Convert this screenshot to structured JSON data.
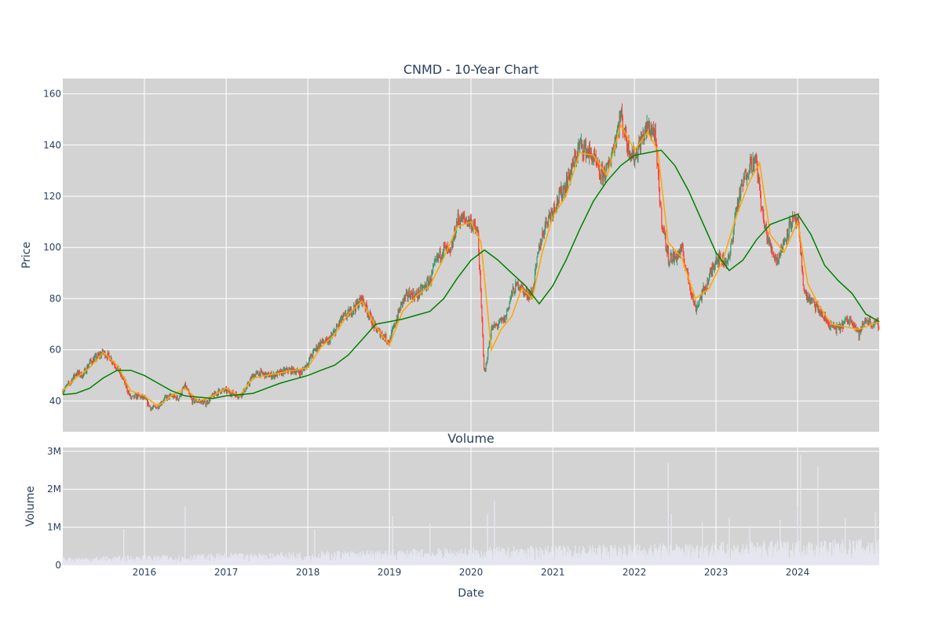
{
  "chart_data": {
    "type": "candlestick",
    "title": "CNMD - 10-Year Chart",
    "price_panel": {
      "ylabel": "Price",
      "ylim": [
        28,
        166
      ],
      "yticks": [
        40,
        60,
        80,
        100,
        120,
        140,
        160
      ],
      "candles": [
        [
          "2015-01-01",
          44
        ],
        [
          "2015-02-01",
          47
        ],
        [
          "2015-03-01",
          51
        ],
        [
          "2015-04-01",
          50
        ],
        [
          "2015-05-01",
          55
        ],
        [
          "2015-06-01",
          57
        ],
        [
          "2015-07-01",
          59
        ],
        [
          "2015-08-01",
          57
        ],
        [
          "2015-09-01",
          53
        ],
        [
          "2015-10-01",
          48
        ],
        [
          "2015-11-01",
          41
        ],
        [
          "2015-12-01",
          42
        ],
        [
          "2016-01-01",
          41
        ],
        [
          "2016-02-01",
          37
        ],
        [
          "2016-03-01",
          38
        ],
        [
          "2016-04-01",
          41
        ],
        [
          "2016-05-01",
          42
        ],
        [
          "2016-06-01",
          41
        ],
        [
          "2016-07-01",
          46
        ],
        [
          "2016-08-01",
          40
        ],
        [
          "2016-09-01",
          40
        ],
        [
          "2016-10-01",
          39
        ],
        [
          "2016-11-01",
          42
        ],
        [
          "2016-12-01",
          44
        ],
        [
          "2017-01-01",
          44
        ],
        [
          "2017-02-01",
          43
        ],
        [
          "2017-03-01",
          42
        ],
        [
          "2017-04-01",
          45
        ],
        [
          "2017-05-01",
          50
        ],
        [
          "2017-06-01",
          51
        ],
        [
          "2017-07-01",
          50
        ],
        [
          "2017-08-01",
          50
        ],
        [
          "2017-09-01",
          51
        ],
        [
          "2017-10-01",
          52
        ],
        [
          "2017-11-01",
          52
        ],
        [
          "2017-12-01",
          51
        ],
        [
          "2018-01-01",
          55
        ],
        [
          "2018-02-01",
          60
        ],
        [
          "2018-03-01",
          63
        ],
        [
          "2018-04-01",
          63
        ],
        [
          "2018-05-01",
          67
        ],
        [
          "2018-06-01",
          72
        ],
        [
          "2018-07-01",
          74
        ],
        [
          "2018-08-01",
          77
        ],
        [
          "2018-09-01",
          80
        ],
        [
          "2018-10-01",
          74
        ],
        [
          "2018-11-01",
          68
        ],
        [
          "2018-12-01",
          66
        ],
        [
          "2019-01-01",
          63
        ],
        [
          "2019-02-01",
          72
        ],
        [
          "2019-03-01",
          79
        ],
        [
          "2019-04-01",
          82
        ],
        [
          "2019-05-01",
          81
        ],
        [
          "2019-06-01",
          84
        ],
        [
          "2019-07-01",
          87
        ],
        [
          "2019-08-01",
          95
        ],
        [
          "2019-09-01",
          100
        ],
        [
          "2019-10-01",
          97
        ],
        [
          "2019-11-01",
          111
        ],
        [
          "2019-12-01",
          111
        ],
        [
          "2020-01-01",
          110
        ],
        [
          "2020-02-01",
          105
        ],
        [
          "2020-03-01",
          50
        ],
        [
          "2020-04-01",
          68
        ],
        [
          "2020-05-01",
          70
        ],
        [
          "2020-06-01",
          72
        ],
        [
          "2020-07-01",
          82
        ],
        [
          "2020-08-01",
          86
        ],
        [
          "2020-09-01",
          82
        ],
        [
          "2020-10-01",
          82
        ],
        [
          "2020-11-01",
          100
        ],
        [
          "2020-12-01",
          110
        ],
        [
          "2021-01-01",
          115
        ],
        [
          "2021-02-01",
          120
        ],
        [
          "2021-03-01",
          125
        ],
        [
          "2021-04-01",
          132
        ],
        [
          "2021-05-01",
          140
        ],
        [
          "2021-06-01",
          138
        ],
        [
          "2021-07-01",
          135
        ],
        [
          "2021-08-01",
          128
        ],
        [
          "2021-09-01",
          130
        ],
        [
          "2021-10-01",
          140
        ],
        [
          "2021-11-01",
          152
        ],
        [
          "2021-12-01",
          140
        ],
        [
          "2022-01-01",
          135
        ],
        [
          "2022-02-01",
          142
        ],
        [
          "2022-03-01",
          147
        ],
        [
          "2022-04-01",
          145
        ],
        [
          "2022-05-01",
          112
        ],
        [
          "2022-06-01",
          96
        ],
        [
          "2022-07-01",
          96
        ],
        [
          "2022-08-01",
          99
        ],
        [
          "2022-09-01",
          87
        ],
        [
          "2022-10-01",
          76
        ],
        [
          "2022-11-01",
          82
        ],
        [
          "2022-12-01",
          88
        ],
        [
          "2023-01-01",
          96
        ],
        [
          "2023-02-01",
          95
        ],
        [
          "2023-03-01",
          95
        ],
        [
          "2023-04-01",
          115
        ],
        [
          "2023-05-01",
          125
        ],
        [
          "2023-06-01",
          133
        ],
        [
          "2023-07-01",
          133
        ],
        [
          "2023-08-01",
          110
        ],
        [
          "2023-09-01",
          100
        ],
        [
          "2023-10-01",
          95
        ],
        [
          "2023-11-01",
          102
        ],
        [
          "2023-12-01",
          110
        ],
        [
          "2024-01-01",
          110
        ],
        [
          "2024-02-01",
          82
        ],
        [
          "2024-03-01",
          79
        ],
        [
          "2024-04-01",
          76
        ],
        [
          "2024-05-01",
          72
        ],
        [
          "2024-06-01",
          69
        ],
        [
          "2024-07-01",
          68
        ],
        [
          "2024-08-01",
          71
        ],
        [
          "2024-09-01",
          72
        ],
        [
          "2024-10-01",
          66
        ],
        [
          "2024-11-01",
          72
        ],
        [
          "2024-12-01",
          70
        ]
      ],
      "series": [
        {
          "color": "#ffa500",
          "points": [
            [
              "2015-01-01",
              44
            ],
            [
              "2015-03-01",
              49
            ],
            [
              "2015-05-01",
              53
            ],
            [
              "2015-07-01",
              59
            ],
            [
              "2015-09-01",
              54
            ],
            [
              "2015-11-01",
              44
            ],
            [
              "2016-01-01",
              42
            ],
            [
              "2016-03-01",
              38
            ],
            [
              "2016-05-01",
              42
            ],
            [
              "2016-07-01",
              45
            ],
            [
              "2016-09-01",
              40
            ],
            [
              "2016-11-01",
              42
            ],
            [
              "2017-01-01",
              45
            ],
            [
              "2017-03-01",
              42
            ],
            [
              "2017-05-01",
              49
            ],
            [
              "2017-07-01",
              50
            ],
            [
              "2017-09-01",
              51
            ],
            [
              "2017-11-01",
              52
            ],
            [
              "2018-01-01",
              53
            ],
            [
              "2018-03-01",
              61
            ],
            [
              "2018-05-01",
              66
            ],
            [
              "2018-07-01",
              74
            ],
            [
              "2018-09-01",
              79
            ],
            [
              "2018-11-01",
              69
            ],
            [
              "2019-01-01",
              62
            ],
            [
              "2019-03-01",
              75
            ],
            [
              "2019-05-01",
              81
            ],
            [
              "2019-07-01",
              85
            ],
            [
              "2019-09-01",
              96
            ],
            [
              "2019-11-01",
              108
            ],
            [
              "2020-01-01",
              110
            ],
            [
              "2020-02-15",
              102
            ],
            [
              "2020-04-01",
              60
            ],
            [
              "2020-05-15",
              68
            ],
            [
              "2020-07-01",
              73
            ],
            [
              "2020-08-15",
              84
            ],
            [
              "2020-10-01",
              80
            ],
            [
              "2020-11-15",
              98
            ],
            [
              "2021-01-01",
              112
            ],
            [
              "2021-03-01",
              120
            ],
            [
              "2021-05-01",
              137
            ],
            [
              "2021-07-01",
              136
            ],
            [
              "2021-09-01",
              128
            ],
            [
              "2021-11-01",
              148
            ],
            [
              "2022-01-01",
              138
            ],
            [
              "2022-03-01",
              145
            ],
            [
              "2022-04-15",
              138
            ],
            [
              "2022-06-01",
              102
            ],
            [
              "2022-08-01",
              96
            ],
            [
              "2022-10-01",
              80
            ],
            [
              "2022-12-01",
              84
            ],
            [
              "2023-02-01",
              95
            ],
            [
              "2023-04-01",
              112
            ],
            [
              "2023-06-01",
              126
            ],
            [
              "2023-07-15",
              133
            ],
            [
              "2023-09-01",
              105
            ],
            [
              "2023-11-01",
              98
            ],
            [
              "2024-01-01",
              110
            ],
            [
              "2024-02-15",
              86
            ],
            [
              "2024-04-01",
              78
            ],
            [
              "2024-06-01",
              70
            ],
            [
              "2024-08-01",
              69
            ],
            [
              "2024-10-01",
              68
            ],
            [
              "2024-12-31",
              71
            ]
          ]
        },
        {
          "color": "#008000",
          "points": [
            [
              "2015-01-01",
              42.5
            ],
            [
              "2015-03-01",
              43
            ],
            [
              "2015-05-01",
              45
            ],
            [
              "2015-07-01",
              49
            ],
            [
              "2015-09-01",
              52
            ],
            [
              "2015-11-01",
              52
            ],
            [
              "2016-01-01",
              50
            ],
            [
              "2016-03-01",
              47
            ],
            [
              "2016-05-01",
              44
            ],
            [
              "2016-07-01",
              42
            ],
            [
              "2016-09-01",
              41.5
            ],
            [
              "2016-11-01",
              41
            ],
            [
              "2017-01-01",
              42
            ],
            [
              "2017-03-01",
              42.5
            ],
            [
              "2017-05-01",
              43
            ],
            [
              "2017-07-01",
              45
            ],
            [
              "2017-09-01",
              47
            ],
            [
              "2017-11-01",
              48.5
            ],
            [
              "2018-01-01",
              50
            ],
            [
              "2018-03-01",
              52
            ],
            [
              "2018-05-01",
              54
            ],
            [
              "2018-07-01",
              58
            ],
            [
              "2018-09-01",
              64
            ],
            [
              "2018-11-01",
              70
            ],
            [
              "2019-01-01",
              71
            ],
            [
              "2019-03-01",
              72
            ],
            [
              "2019-05-01",
              73.5
            ],
            [
              "2019-07-01",
              75
            ],
            [
              "2019-09-01",
              80
            ],
            [
              "2019-11-01",
              88
            ],
            [
              "2020-01-01",
              95
            ],
            [
              "2020-03-01",
              99
            ],
            [
              "2020-05-01",
              95
            ],
            [
              "2020-07-01",
              90
            ],
            [
              "2020-09-01",
              85
            ],
            [
              "2020-11-01",
              78
            ],
            [
              "2021-01-01",
              85
            ],
            [
              "2021-03-01",
              95
            ],
            [
              "2021-05-01",
              107
            ],
            [
              "2021-07-01",
              118
            ],
            [
              "2021-09-01",
              126
            ],
            [
              "2021-11-01",
              132
            ],
            [
              "2022-01-01",
              136
            ],
            [
              "2022-03-01",
              137
            ],
            [
              "2022-05-01",
              138
            ],
            [
              "2022-07-01",
              132
            ],
            [
              "2022-09-01",
              122
            ],
            [
              "2022-11-01",
              110
            ],
            [
              "2023-01-01",
              98
            ],
            [
              "2023-03-01",
              91
            ],
            [
              "2023-05-01",
              95
            ],
            [
              "2023-07-01",
              103
            ],
            [
              "2023-09-01",
              109
            ],
            [
              "2023-11-01",
              111
            ],
            [
              "2024-01-01",
              113
            ],
            [
              "2024-03-01",
              105
            ],
            [
              "2024-05-01",
              93
            ],
            [
              "2024-07-01",
              87
            ],
            [
              "2024-09-01",
              82
            ],
            [
              "2024-11-01",
              74
            ],
            [
              "2024-12-31",
              71
            ]
          ]
        }
      ]
    },
    "volume_panel": {
      "subtitle": "Volume",
      "ylabel": "Volume",
      "ylim": [
        0,
        3100000
      ],
      "ytick_labels": [
        "0",
        "1M",
        "2M",
        "3M"
      ],
      "yticks": [
        0,
        1000000,
        2000000,
        3000000
      ],
      "bar_color": "#e6e6f0",
      "spikes": [
        [
          "2015-10-01",
          950000
        ],
        [
          "2016-07-01",
          1550000
        ],
        [
          "2018-02-01",
          950000
        ],
        [
          "2019-01-15",
          1300000
        ],
        [
          "2019-07-01",
          1100000
        ],
        [
          "2020-03-15",
          1350000
        ],
        [
          "2020-04-15",
          1700000
        ],
        [
          "2022-06-01",
          2700000
        ],
        [
          "2022-06-15",
          1350000
        ],
        [
          "2022-11-01",
          1150000
        ],
        [
          "2023-03-01",
          1250000
        ],
        [
          "2023-06-01",
          1050000
        ],
        [
          "2023-10-15",
          1200000
        ],
        [
          "2024-01-01",
          1550000
        ],
        [
          "2024-01-15",
          2900000
        ],
        [
          "2024-04-01",
          2600000
        ],
        [
          "2024-08-01",
          1250000
        ],
        [
          "2024-12-15",
          1400000
        ]
      ]
    },
    "xaxis": {
      "xlabel": "Date",
      "range": [
        "2015-01-01",
        "2024-12-31"
      ],
      "ticks": [
        [
          "2016-01-01",
          "2016"
        ],
        [
          "2017-01-01",
          "2017"
        ],
        [
          "2018-01-01",
          "2018"
        ],
        [
          "2019-01-01",
          "2019"
        ],
        [
          "2020-01-01",
          "2020"
        ],
        [
          "2021-01-01",
          "2021"
        ],
        [
          "2022-01-01",
          "2022"
        ],
        [
          "2023-01-01",
          "2023"
        ],
        [
          "2024-01-01",
          "2024"
        ]
      ]
    },
    "colors": {
      "background": "#ffffff",
      "plot_background": "#d3d3d3",
      "grid": "#ffffff",
      "text": "#2a3f5f",
      "increasing": "#3d9970",
      "decreasing": "#ff4136"
    },
    "grid": true,
    "legend": "none"
  }
}
